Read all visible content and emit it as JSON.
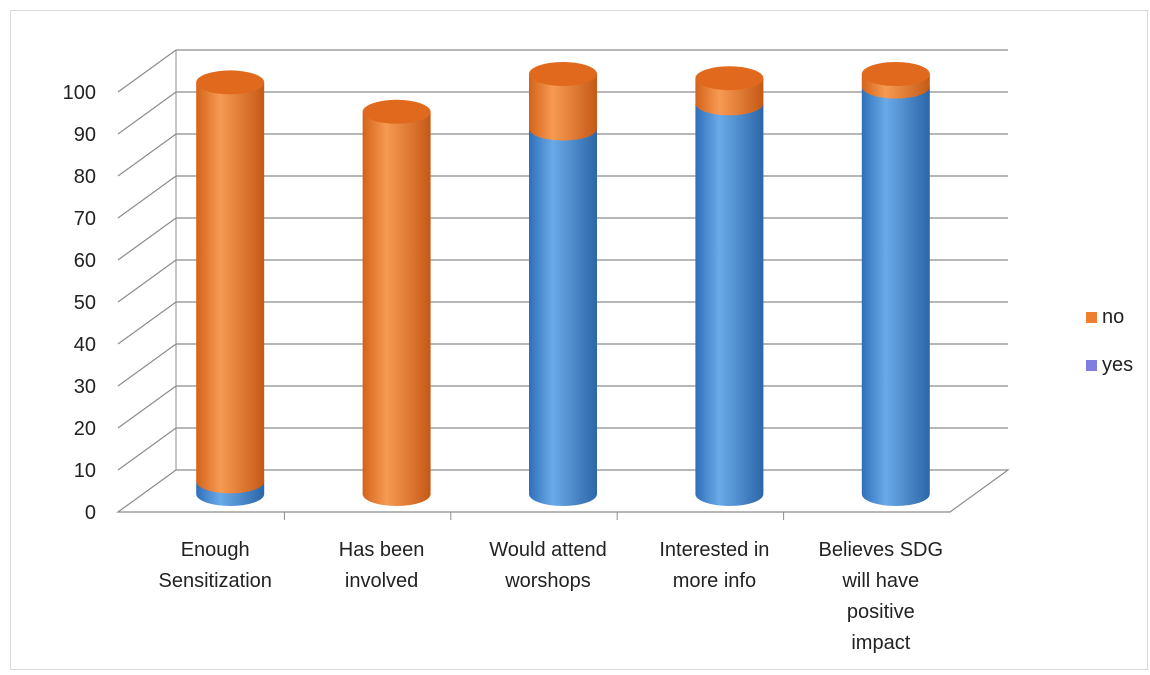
{
  "chart_data": {
    "type": "bar",
    "stacked": true,
    "three_d": true,
    "bar_shape": "cylinder",
    "title": "",
    "xlabel": "",
    "ylabel": "",
    "ylim": [
      0,
      100
    ],
    "yticks": [
      "0",
      "10",
      "20",
      "30",
      "40",
      "50",
      "60",
      "70",
      "80",
      "90",
      "100"
    ],
    "grid": true,
    "legend_position": "right",
    "categories": [
      [
        "Enough",
        "Sensitization"
      ],
      [
        "Has been",
        "involved"
      ],
      [
        "Would attend",
        "worshops"
      ],
      [
        "Interested in",
        "more info"
      ],
      [
        "Believes SDG",
        "will have",
        "positive",
        "impact"
      ]
    ],
    "series": [
      {
        "name": "yes",
        "color": "#4a8fd6",
        "values": [
          3,
          0,
          87,
          93,
          97
        ]
      },
      {
        "name": "no",
        "color": "#ef7f2f",
        "values": [
          95,
          91,
          13,
          6,
          3
        ]
      }
    ],
    "legend_order": [
      "no",
      "yes"
    ]
  }
}
